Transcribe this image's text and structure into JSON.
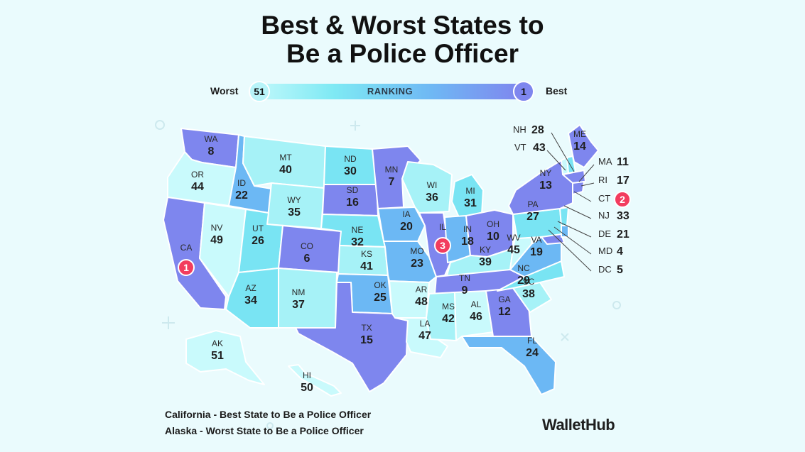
{
  "title": "Best & Worst States to Be a Police Officer",
  "legend": {
    "worst_label": "Worst",
    "best_label": "Best",
    "bar_label": "RANKING",
    "min_rank": "51",
    "max_rank": "1"
  },
  "colors": {
    "background": "#eafbfd",
    "rank_1_17": "#7e86ee",
    "rank_18_25": "#6cb8f4",
    "rank_26_34": "#79e4f3",
    "rank_35_42": "#a6f2f7",
    "rank_43_51": "#c9fafc",
    "top3_badge": "#f23c5e"
  },
  "states": [
    {
      "abbr": "WA",
      "rank": "8"
    },
    {
      "abbr": "OR",
      "rank": "44"
    },
    {
      "abbr": "CA",
      "rank": "1"
    },
    {
      "abbr": "NV",
      "rank": "49"
    },
    {
      "abbr": "ID",
      "rank": "22"
    },
    {
      "abbr": "MT",
      "rank": "40"
    },
    {
      "abbr": "WY",
      "rank": "35"
    },
    {
      "abbr": "UT",
      "rank": "26"
    },
    {
      "abbr": "AZ",
      "rank": "34"
    },
    {
      "abbr": "CO",
      "rank": "6"
    },
    {
      "abbr": "NM",
      "rank": "37"
    },
    {
      "abbr": "ND",
      "rank": "30"
    },
    {
      "abbr": "SD",
      "rank": "16"
    },
    {
      "abbr": "NE",
      "rank": "32"
    },
    {
      "abbr": "KS",
      "rank": "41"
    },
    {
      "abbr": "OK",
      "rank": "25"
    },
    {
      "abbr": "TX",
      "rank": "15"
    },
    {
      "abbr": "MN",
      "rank": "7"
    },
    {
      "abbr": "IA",
      "rank": "20"
    },
    {
      "abbr": "MO",
      "rank": "23"
    },
    {
      "abbr": "AR",
      "rank": "48"
    },
    {
      "abbr": "LA",
      "rank": "47"
    },
    {
      "abbr": "WI",
      "rank": "36"
    },
    {
      "abbr": "IL",
      "rank": "3"
    },
    {
      "abbr": "MI",
      "rank": "31"
    },
    {
      "abbr": "IN",
      "rank": "18"
    },
    {
      "abbr": "OH",
      "rank": "10"
    },
    {
      "abbr": "KY",
      "rank": "39"
    },
    {
      "abbr": "TN",
      "rank": "9"
    },
    {
      "abbr": "MS",
      "rank": "42"
    },
    {
      "abbr": "AL",
      "rank": "46"
    },
    {
      "abbr": "GA",
      "rank": "12"
    },
    {
      "abbr": "FL",
      "rank": "24"
    },
    {
      "abbr": "SC",
      "rank": "38"
    },
    {
      "abbr": "NC",
      "rank": "29"
    },
    {
      "abbr": "VA",
      "rank": "19"
    },
    {
      "abbr": "WV",
      "rank": "45"
    },
    {
      "abbr": "PA",
      "rank": "27"
    },
    {
      "abbr": "NY",
      "rank": "13"
    },
    {
      "abbr": "ME",
      "rank": "14"
    },
    {
      "abbr": "AK",
      "rank": "51"
    },
    {
      "abbr": "HI",
      "rank": "50"
    }
  ],
  "callouts": [
    {
      "abbr": "NH",
      "rank": "28"
    },
    {
      "abbr": "VT",
      "rank": "43"
    },
    {
      "abbr": "MA",
      "rank": "11"
    },
    {
      "abbr": "RI",
      "rank": "17"
    },
    {
      "abbr": "CT",
      "rank": "2"
    },
    {
      "abbr": "NJ",
      "rank": "33"
    },
    {
      "abbr": "DE",
      "rank": "21"
    },
    {
      "abbr": "MD",
      "rank": "4"
    },
    {
      "abbr": "DC",
      "rank": "5"
    }
  ],
  "footer": {
    "line1": "California - Best State to Be a Police Officer",
    "line2": "Alaska - Worst State to Be a Police Officer",
    "logo": "WalletHub"
  }
}
